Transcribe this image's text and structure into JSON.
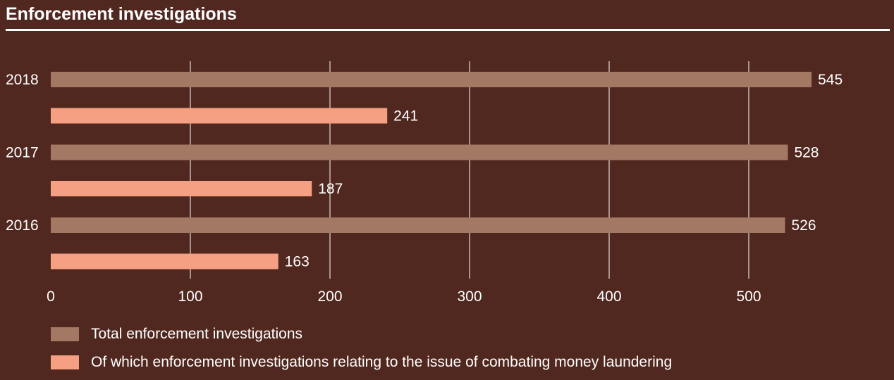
{
  "chart_data": {
    "type": "bar",
    "orientation": "horizontal",
    "title": "Enforcement investigations",
    "categories": [
      "2018",
      "2017",
      "2016"
    ],
    "series": [
      {
        "name": "Total enforcement investigations",
        "values": [
          545,
          528,
          526
        ],
        "color": "#a37963"
      },
      {
        "name": "Of which enforcement investigations relating to the issue of combating money laundering",
        "values": [
          241,
          187,
          163
        ],
        "color": "#f5a083"
      }
    ],
    "xticks": [
      0,
      100,
      200,
      300,
      400,
      500
    ],
    "xlim": [
      0,
      600
    ],
    "xlabel": "",
    "ylabel": "",
    "grid": true,
    "legend_position": "bottom-left",
    "colors": {
      "background": "#512820",
      "text": "#ffffff",
      "grid": "#ffffff"
    }
  }
}
